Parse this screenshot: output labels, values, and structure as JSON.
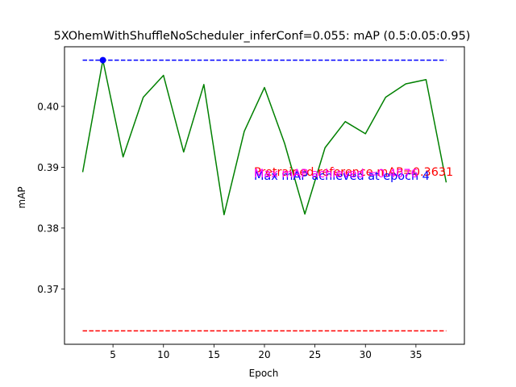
{
  "chart_data": {
    "type": "line",
    "title": "5XOhemWithShuffleNoScheduler_inferConf=0.055:  mAP (0.5:0.05:0.95)",
    "xlabel": "Epoch",
    "ylabel": "mAP",
    "xlim": [
      0.2,
      39.8
    ],
    "ylim": [
      0.3609,
      0.4098
    ],
    "xticks": [
      5,
      10,
      15,
      20,
      25,
      30,
      35
    ],
    "yticks": [
      0.37,
      0.38,
      0.39,
      0.4
    ],
    "ytick_labels": [
      "0.37",
      "0.38",
      "0.39",
      "0.40"
    ],
    "grid": false,
    "series": [
      {
        "color": "#008000",
        "x": [
          2,
          4,
          6,
          8,
          10,
          12,
          14,
          16,
          18,
          20,
          22,
          24,
          26,
          28,
          30,
          32,
          34,
          36,
          38
        ],
        "y": [
          0.3892,
          0.4076,
          0.3917,
          0.4015,
          0.4051,
          0.3925,
          0.4036,
          0.3822,
          0.3959,
          0.4031,
          0.3939,
          0.3823,
          0.3932,
          0.3975,
          0.3955,
          0.4015,
          0.4037,
          0.4044,
          0.3875
        ]
      }
    ],
    "reference_lines": [
      {
        "label": "max",
        "y": 0.4076,
        "color": "#0000ff",
        "style": "dashed",
        "x_range": [
          2,
          38
        ]
      },
      {
        "label": "pretrained",
        "y": 0.3631,
        "color": "#ff0000",
        "style": "dashed",
        "x_range": [
          2,
          38
        ]
      }
    ],
    "max_marker": {
      "x": 4,
      "y": 0.4076,
      "color": "#0000ff"
    },
    "annotations": [
      {
        "text": "Pretrained reference mAP=0.3631",
        "color": "#ff0000"
      },
      {
        "text": "Max mAP achieved at epoch 4",
        "color": "#0000ff"
      },
      {
        "text": "Max mAP achieved =0.4076",
        "color": "#ff00ff"
      }
    ]
  }
}
